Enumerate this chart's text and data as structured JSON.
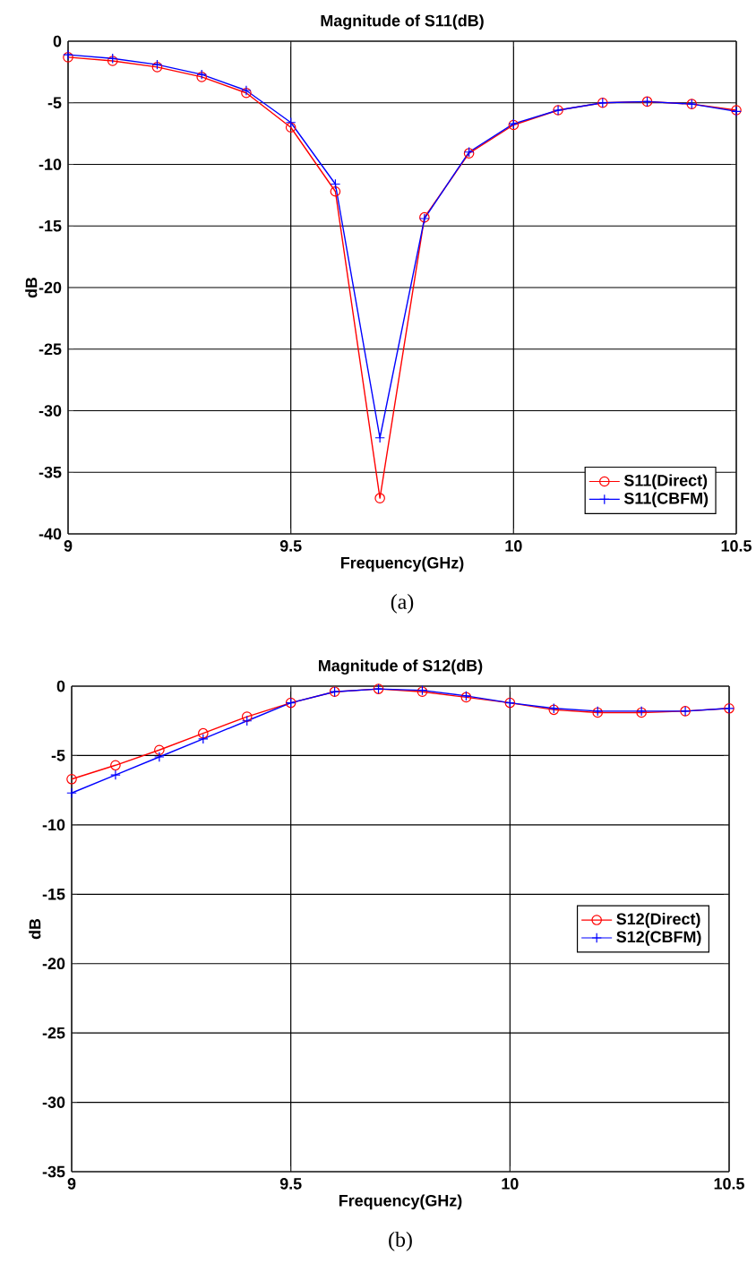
{
  "chart_data": [
    {
      "type": "line",
      "title": "Magnitude of S11(dB)",
      "xlabel": "Frequency(GHz)",
      "ylabel": "dB",
      "x": [
        9,
        9.1,
        9.2,
        9.3,
        9.4,
        9.5,
        9.6,
        9.7,
        9.8,
        9.9,
        10,
        10.1,
        10.2,
        10.3,
        10.4,
        10.5
      ],
      "series": [
        {
          "name": "S11(Direct)",
          "color": "#ff0000",
          "marker": "circle",
          "values": [
            -1.3,
            -1.6,
            -2.1,
            -2.9,
            -4.2,
            -7.0,
            -12.2,
            -37.1,
            -14.3,
            -9.1,
            -6.8,
            -5.6,
            -5.0,
            -4.9,
            -5.1,
            -5.6
          ]
        },
        {
          "name": "S11(CBFM)",
          "color": "#0000ff",
          "marker": "cross",
          "values": [
            -1.1,
            -1.4,
            -1.9,
            -2.7,
            -4.0,
            -6.6,
            -11.6,
            -32.2,
            -14.4,
            -9.0,
            -6.7,
            -5.6,
            -5.0,
            -4.9,
            -5.1,
            -5.7
          ]
        }
      ],
      "xlim": [
        9,
        10.5
      ],
      "ylim": [
        -40,
        0
      ],
      "xticks": [
        9,
        9.5,
        10,
        10.5
      ],
      "yticks": [
        -40,
        -35,
        -30,
        -25,
        -20,
        -15,
        -10,
        -5,
        0
      ],
      "grid": true,
      "legend": "bottom right",
      "annotations": [
        "(a)"
      ]
    },
    {
      "type": "line",
      "title": "Magnitude of S12(dB)",
      "xlabel": "Frequency(GHz)",
      "ylabel": "dB",
      "x": [
        9,
        9.1,
        9.2,
        9.3,
        9.4,
        9.5,
        9.6,
        9.7,
        9.8,
        9.9,
        10,
        10.1,
        10.2,
        10.3,
        10.4,
        10.5
      ],
      "series": [
        {
          "name": "S12(Direct)",
          "color": "#ff0000",
          "marker": "circle",
          "values": [
            -6.7,
            -5.7,
            -4.6,
            -3.4,
            -2.2,
            -1.2,
            -0.4,
            -0.2,
            -0.4,
            -0.8,
            -1.2,
            -1.7,
            -1.9,
            -1.9,
            -1.8,
            -1.6
          ]
        },
        {
          "name": "S12(CBFM)",
          "color": "#0000ff",
          "marker": "cross",
          "values": [
            -7.7,
            -6.4,
            -5.1,
            -3.8,
            -2.5,
            -1.2,
            -0.4,
            -0.2,
            -0.3,
            -0.7,
            -1.2,
            -1.6,
            -1.8,
            -1.8,
            -1.8,
            -1.6
          ]
        }
      ],
      "xlim": [
        9,
        10.5
      ],
      "ylim": [
        -35,
        0
      ],
      "xticks": [
        9,
        9.5,
        10,
        10.5
      ],
      "yticks": [
        -35,
        -30,
        -25,
        -20,
        -15,
        -10,
        -5,
        0
      ],
      "grid": true,
      "legend": "right",
      "annotations": [
        "(b)"
      ]
    }
  ]
}
